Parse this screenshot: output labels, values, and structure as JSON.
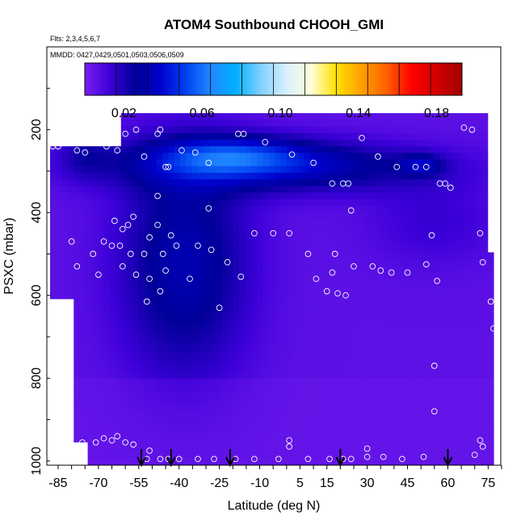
{
  "header": {
    "title": "ATOM4 Southbound CHOOH_GMI",
    "flights_note": "Flts: 2,3,4,5,6,7",
    "dates_note": "MMDD: 0427,0429,0501,0503,0506,0509"
  },
  "colors": {
    "scale": [
      "#7a1ff0",
      "#3c00d8",
      "#000098",
      "#0000cc",
      "#0040f0",
      "#2088ff",
      "#00b0ff",
      "#80d0ff",
      "#d8f0ff",
      "#ffffd8",
      "#ffe000",
      "#ffa000",
      "#ff6000",
      "#ff0000",
      "#d00000",
      "#a00000"
    ],
    "marker": "#ffffff",
    "arrow": "#000000"
  },
  "chart_data": {
    "type": "heatmap",
    "title": "ATOM4 Southbound CHOOH_GMI",
    "xlabel": "Latitude (deg N)",
    "ylabel": "PSXC (mbar)",
    "xlim": [
      -88,
      80
    ],
    "ylim": [
      1010,
      0
    ],
    "x_ticks": [
      -85,
      -70,
      -55,
      -40,
      -25,
      -10,
      5,
      15,
      30,
      45,
      60,
      75
    ],
    "y_ticks": [
      200,
      400,
      600,
      800,
      1000
    ],
    "colorbar": {
      "range": [
        0,
        0.193
      ],
      "ticks": [
        0.02,
        0.06,
        0.1,
        0.14,
        0.18
      ],
      "tick_labels": [
        "0.02",
        "0.06",
        "0.10",
        "0.14",
        "0.18"
      ]
    },
    "profile_arrows_lat": [
      -54,
      -43,
      -21,
      20,
      60
    ],
    "observations": [
      {
        "lat": -87,
        "p": 240
      },
      {
        "lat": -85,
        "p": 240
      },
      {
        "lat": -78,
        "p": 250
      },
      {
        "lat": -75,
        "p": 255
      },
      {
        "lat": -68,
        "p": 230
      },
      {
        "lat": -67,
        "p": 240
      },
      {
        "lat": -66,
        "p": 220
      },
      {
        "lat": -63,
        "p": 250
      },
      {
        "lat": -60,
        "p": 210
      },
      {
        "lat": -56,
        "p": 200
      },
      {
        "lat": -53,
        "p": 265
      },
      {
        "lat": -48,
        "p": 210
      },
      {
        "lat": -47,
        "p": 200
      },
      {
        "lat": -45,
        "p": 290
      },
      {
        "lat": -44,
        "p": 290
      },
      {
        "lat": -39,
        "p": 250
      },
      {
        "lat": -34,
        "p": 255
      },
      {
        "lat": -29,
        "p": 280
      },
      {
        "lat": -18,
        "p": 210
      },
      {
        "lat": -16,
        "p": 210
      },
      {
        "lat": -8,
        "p": 230
      },
      {
        "lat": 2,
        "p": 260
      },
      {
        "lat": 10,
        "p": 280
      },
      {
        "lat": 17,
        "p": 330
      },
      {
        "lat": 21,
        "p": 330
      },
      {
        "lat": 23,
        "p": 330
      },
      {
        "lat": 28,
        "p": 220
      },
      {
        "lat": 34,
        "p": 265
      },
      {
        "lat": 41,
        "p": 290
      },
      {
        "lat": 48,
        "p": 290
      },
      {
        "lat": 52,
        "p": 290
      },
      {
        "lat": 57,
        "p": 330
      },
      {
        "lat": 59,
        "p": 330
      },
      {
        "lat": 61,
        "p": 340
      },
      {
        "lat": 66,
        "p": 195
      },
      {
        "lat": 69,
        "p": 200
      },
      {
        "lat": -48,
        "p": 360
      },
      {
        "lat": -29,
        "p": 390
      },
      {
        "lat": 24,
        "p": 395
      },
      {
        "lat": -64,
        "p": 420
      },
      {
        "lat": -61,
        "p": 440
      },
      {
        "lat": -59,
        "p": 430
      },
      {
        "lat": -57,
        "p": 410
      },
      {
        "lat": -51,
        "p": 460
      },
      {
        "lat": -48,
        "p": 430
      },
      {
        "lat": -43,
        "p": 455
      },
      {
        "lat": -80,
        "p": 470
      },
      {
        "lat": -72,
        "p": 500
      },
      {
        "lat": -68,
        "p": 470
      },
      {
        "lat": -65,
        "p": 480
      },
      {
        "lat": -62,
        "p": 480
      },
      {
        "lat": -58,
        "p": 500
      },
      {
        "lat": -53,
        "p": 500
      },
      {
        "lat": -46,
        "p": 500
      },
      {
        "lat": -41,
        "p": 480
      },
      {
        "lat": -33,
        "p": 480
      },
      {
        "lat": -28,
        "p": 490
      },
      {
        "lat": -12,
        "p": 450
      },
      {
        "lat": -5,
        "p": 450
      },
      {
        "lat": 1,
        "p": 450
      },
      {
        "lat": 8,
        "p": 500
      },
      {
        "lat": 18,
        "p": 500
      },
      {
        "lat": 54,
        "p": 455
      },
      {
        "lat": 72,
        "p": 450
      },
      {
        "lat": -78,
        "p": 530
      },
      {
        "lat": -70,
        "p": 550
      },
      {
        "lat": -61,
        "p": 530
      },
      {
        "lat": -56,
        "p": 550
      },
      {
        "lat": -51,
        "p": 560
      },
      {
        "lat": -45,
        "p": 540
      },
      {
        "lat": -36,
        "p": 560
      },
      {
        "lat": -22,
        "p": 520
      },
      {
        "lat": -17,
        "p": 555
      },
      {
        "lat": 11,
        "p": 560
      },
      {
        "lat": 17,
        "p": 545
      },
      {
        "lat": 25,
        "p": 530
      },
      {
        "lat": 32,
        "p": 530
      },
      {
        "lat": 35,
        "p": 540
      },
      {
        "lat": 39,
        "p": 545
      },
      {
        "lat": 45,
        "p": 545
      },
      {
        "lat": 52,
        "p": 525
      },
      {
        "lat": 56,
        "p": 565
      },
      {
        "lat": 73,
        "p": 520
      },
      {
        "lat": 15,
        "p": 590
      },
      {
        "lat": 19,
        "p": 595
      },
      {
        "lat": 22,
        "p": 600
      },
      {
        "lat": 76,
        "p": 615
      },
      {
        "lat": -52,
        "p": 615
      },
      {
        "lat": -47,
        "p": 590
      },
      {
        "lat": -25,
        "p": 630
      },
      {
        "lat": 77,
        "p": 680
      },
      {
        "lat": 55,
        "p": 770
      },
      {
        "lat": 55,
        "p": 880
      },
      {
        "lat": -76,
        "p": 955
      },
      {
        "lat": -71,
        "p": 955
      },
      {
        "lat": -68,
        "p": 945
      },
      {
        "lat": -65,
        "p": 950
      },
      {
        "lat": -63,
        "p": 940
      },
      {
        "lat": -60,
        "p": 955
      },
      {
        "lat": -57,
        "p": 960
      },
      {
        "lat": -51,
        "p": 975
      },
      {
        "lat": 1,
        "p": 950
      },
      {
        "lat": 1,
        "p": 965
      },
      {
        "lat": 30,
        "p": 970
      },
      {
        "lat": 72,
        "p": 950
      },
      {
        "lat": 73,
        "p": 965
      },
      {
        "lat": -52,
        "p": 995
      },
      {
        "lat": -47,
        "p": 995
      },
      {
        "lat": -44,
        "p": 995
      },
      {
        "lat": -40,
        "p": 995
      },
      {
        "lat": -33,
        "p": 995
      },
      {
        "lat": -27,
        "p": 995
      },
      {
        "lat": -19,
        "p": 995
      },
      {
        "lat": -12,
        "p": 995
      },
      {
        "lat": -3,
        "p": 995
      },
      {
        "lat": 8,
        "p": 995
      },
      {
        "lat": 16,
        "p": 995
      },
      {
        "lat": 21,
        "p": 995
      },
      {
        "lat": 24,
        "p": 995
      },
      {
        "lat": 30,
        "p": 990
      },
      {
        "lat": 36,
        "p": 990
      },
      {
        "lat": 43,
        "p": 995
      },
      {
        "lat": 51,
        "p": 990
      },
      {
        "lat": 70,
        "p": 985
      }
    ]
  }
}
